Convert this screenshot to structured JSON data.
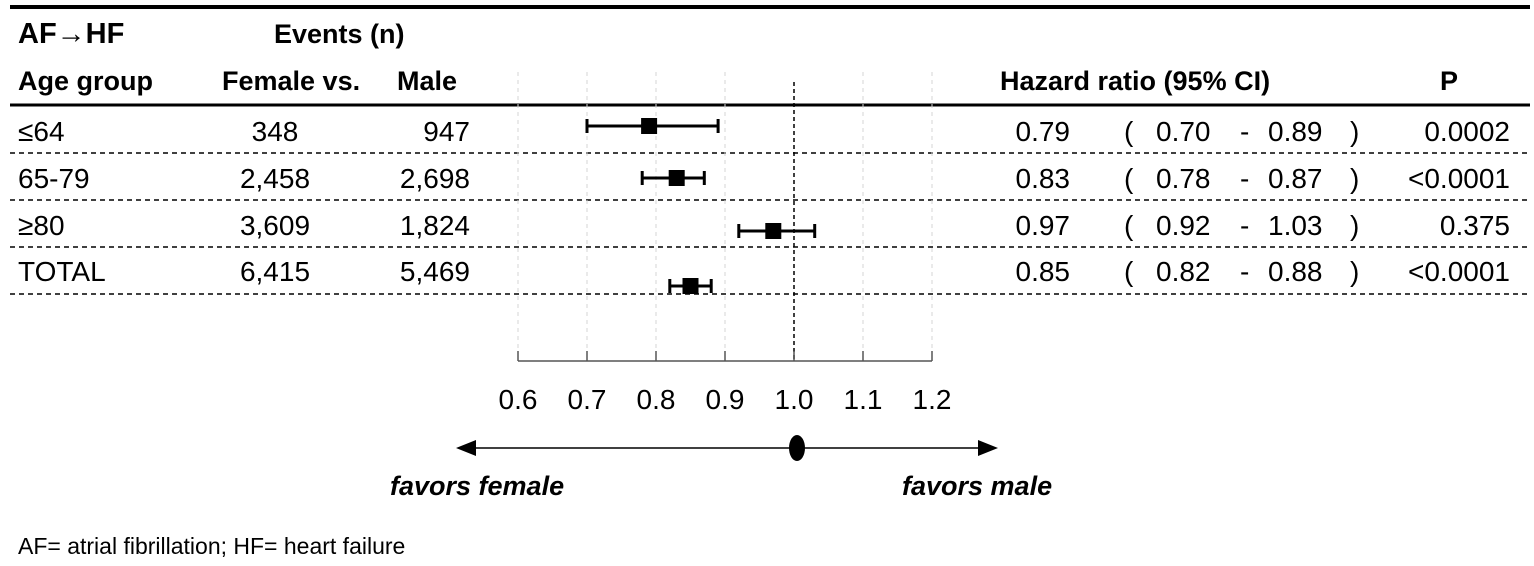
{
  "header": {
    "title": "AF→HF",
    "events_label": "Events (n)",
    "age_group_label": "Age group",
    "female_vs_label": "Female vs.",
    "male_label": "Male",
    "hr_label": "Hazard ratio (95% CI)",
    "p_label": "P"
  },
  "rows": [
    {
      "group": "≤64",
      "female": "348",
      "male": "947",
      "hr": "0.79",
      "lo": "0.70",
      "hi": "0.89",
      "p": "0.0002",
      "open": "(",
      "dash": "-",
      "close": ")"
    },
    {
      "group": "65-79",
      "female": "2,458",
      "male": "2,698",
      "hr": "0.83",
      "lo": "0.78",
      "hi": "0.87",
      "p": "<0.0001",
      "open": "(",
      "dash": "-",
      "close": ")"
    },
    {
      "group": "≥80",
      "female": "3,609",
      "male": "1,824",
      "hr": "0.97",
      "lo": "0.92",
      "hi": "1.03",
      "p": "0.375",
      "open": "(",
      "dash": "-",
      "close": ")"
    },
    {
      "group": "TOTAL",
      "female": "6,415",
      "male": "5,469",
      "hr": "0.85",
      "lo": "0.82",
      "hi": "0.88",
      "p": "<0.0001",
      "open": "(",
      "dash": "-",
      "close": ")"
    }
  ],
  "chart_data": {
    "type": "forest",
    "categories": [
      "≤64",
      "65-79",
      "≥80",
      "TOTAL"
    ],
    "estimates": [
      0.79,
      0.83,
      0.97,
      0.85
    ],
    "ci_low": [
      0.7,
      0.78,
      0.92,
      0.82
    ],
    "ci_high": [
      0.89,
      0.87,
      1.03,
      0.88
    ],
    "xlim": [
      0.6,
      1.2
    ],
    "reference": 1.0,
    "ticks": [
      "0.6",
      "0.7",
      "0.8",
      "0.9",
      "1.0",
      "1.1",
      "1.2"
    ],
    "favors_left": "favors female",
    "favors_right": "favors male"
  },
  "footnote": "AF= atrial fibrillation; HF= heart failure"
}
